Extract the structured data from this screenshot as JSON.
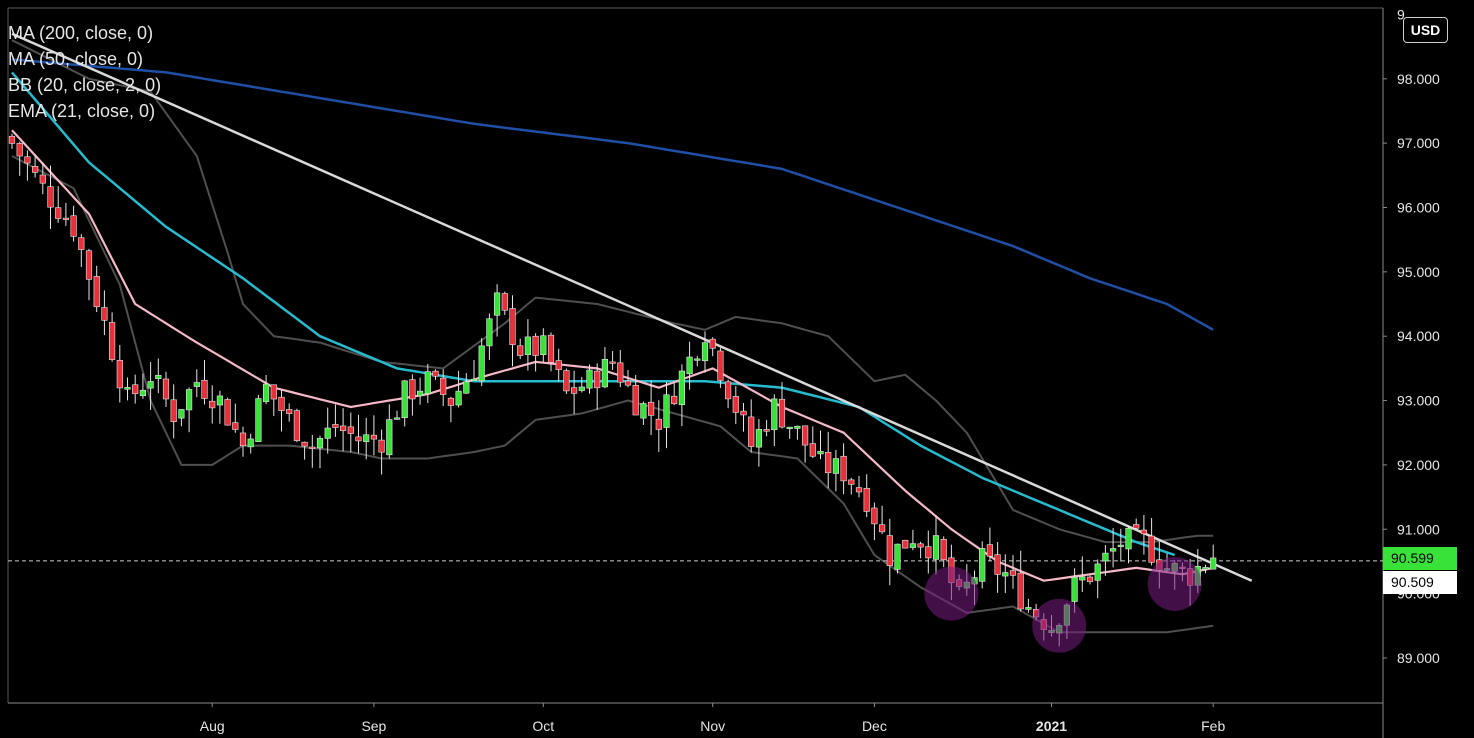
{
  "chart_data": {
    "type": "candlestick",
    "currency_button": "USD",
    "indicators": [
      {
        "label": "MA (200, close, 0)",
        "color": "#1f4fa6"
      },
      {
        "label": "MA (50, close, 0)",
        "color": "#26bcd0"
      },
      {
        "label": "BB (20, close, 2, 0)",
        "color": "#555555"
      },
      {
        "label": "EMA (21, close, 0)",
        "color": "#f5b8c6"
      }
    ],
    "y_ticks": [
      "98.000",
      "97.000",
      "96.000",
      "95.000",
      "94.000",
      "93.000",
      "92.000",
      "91.000",
      "90.000",
      "89.000"
    ],
    "y_top_clipped": "9",
    "ylim": [
      88.3,
      99.1
    ],
    "x_ticks": [
      {
        "label": "Aug",
        "bar": 26
      },
      {
        "label": "Sep",
        "bar": 47
      },
      {
        "label": "Oct",
        "bar": 69
      },
      {
        "label": "Nov",
        "bar": 91
      },
      {
        "label": "Dec",
        "bar": 112
      },
      {
        "label": "2021",
        "bar": 135,
        "bold": true
      },
      {
        "label": "Feb",
        "bar": 156
      }
    ],
    "bar_count": 161,
    "last_price": "90.599",
    "reference_price": "90.509",
    "last_price_value": 90.599,
    "reference_price_value": 90.509,
    "bull_color": "#39e239",
    "bear_color": "#e8303a",
    "trendline": {
      "from": {
        "bar": 0,
        "price": 98.7
      },
      "to": {
        "bar": 161,
        "price": 90.2
      },
      "color": "#d9d9d9"
    },
    "highlight_circles": [
      {
        "bar": 122,
        "price": 90.0
      },
      {
        "bar": 136,
        "price": 89.5
      },
      {
        "bar": 151,
        "price": 90.15
      }
    ],
    "close_anchors": [
      [
        0,
        97.0
      ],
      [
        4,
        96.3
      ],
      [
        8,
        95.7
      ],
      [
        12,
        94.2
      ],
      [
        15,
        93.0
      ],
      [
        18,
        93.4
      ],
      [
        21,
        92.8
      ],
      [
        24,
        93.3
      ],
      [
        27,
        93.0
      ],
      [
        30,
        92.3
      ],
      [
        33,
        93.2
      ],
      [
        36,
        92.7
      ],
      [
        39,
        92.3
      ],
      [
        42,
        92.6
      ],
      [
        45,
        92.4
      ],
      [
        48,
        92.4
      ],
      [
        51,
        93.1
      ],
      [
        54,
        93.3
      ],
      [
        57,
        93.0
      ],
      [
        60,
        93.5
      ],
      [
        63,
        94.5
      ],
      [
        66,
        93.8
      ],
      [
        69,
        93.8
      ],
      [
        72,
        93.1
      ],
      [
        75,
        93.3
      ],
      [
        78,
        93.6
      ],
      [
        81,
        93.0
      ],
      [
        84,
        92.7
      ],
      [
        87,
        93.4
      ],
      [
        90,
        94.1
      ],
      [
        93,
        93.2
      ],
      [
        96,
        92.3
      ],
      [
        99,
        92.9
      ],
      [
        102,
        92.5
      ],
      [
        105,
        92.0
      ],
      [
        108,
        91.9
      ],
      [
        111,
        91.5
      ],
      [
        114,
        90.6
      ],
      [
        117,
        90.9
      ],
      [
        120,
        90.7
      ],
      [
        123,
        89.9
      ],
      [
        126,
        90.5
      ],
      [
        129,
        90.3
      ],
      [
        132,
        89.8
      ],
      [
        135,
        89.5
      ],
      [
        138,
        90.1
      ],
      [
        141,
        90.4
      ],
      [
        144,
        90.8
      ],
      [
        147,
        90.8
      ],
      [
        150,
        90.4
      ],
      [
        153,
        90.3
      ],
      [
        156,
        90.6
      ]
    ],
    "ma200_anchors": [
      [
        0,
        98.3
      ],
      [
        20,
        98.1
      ],
      [
        40,
        97.7
      ],
      [
        60,
        97.3
      ],
      [
        80,
        97.0
      ],
      [
        100,
        96.6
      ],
      [
        120,
        95.8
      ],
      [
        130,
        95.4
      ],
      [
        140,
        94.9
      ],
      [
        150,
        94.5
      ],
      [
        156,
        94.1
      ]
    ],
    "ma50_anchors": [
      [
        0,
        98.1
      ],
      [
        10,
        96.7
      ],
      [
        20,
        95.7
      ],
      [
        30,
        94.9
      ],
      [
        40,
        94.0
      ],
      [
        50,
        93.5
      ],
      [
        60,
        93.3
      ],
      [
        70,
        93.3
      ],
      [
        80,
        93.3
      ],
      [
        90,
        93.3
      ],
      [
        100,
        93.2
      ],
      [
        110,
        92.9
      ],
      [
        118,
        92.3
      ],
      [
        126,
        91.8
      ],
      [
        136,
        91.3
      ],
      [
        146,
        90.8
      ],
      [
        151,
        90.6
      ]
    ],
    "ema21_anchors": [
      [
        0,
        97.2
      ],
      [
        10,
        95.9
      ],
      [
        16,
        94.5
      ],
      [
        24,
        93.9
      ],
      [
        34,
        93.2
      ],
      [
        44,
        92.9
      ],
      [
        54,
        93.1
      ],
      [
        62,
        93.4
      ],
      [
        68,
        93.6
      ],
      [
        76,
        93.5
      ],
      [
        84,
        93.2
      ],
      [
        91,
        93.5
      ],
      [
        100,
        92.9
      ],
      [
        108,
        92.5
      ],
      [
        116,
        91.6
      ],
      [
        122,
        91.0
      ],
      [
        128,
        90.5
      ],
      [
        134,
        90.2
      ],
      [
        140,
        90.3
      ],
      [
        146,
        90.4
      ],
      [
        152,
        90.3
      ],
      [
        156,
        90.4
      ]
    ],
    "bb_upper_anchors": [
      [
        0,
        98.6
      ],
      [
        10,
        98.0
      ],
      [
        18,
        97.8
      ],
      [
        24,
        96.8
      ],
      [
        28,
        95.3
      ],
      [
        30,
        94.5
      ],
      [
        34,
        94.0
      ],
      [
        40,
        93.9
      ],
      [
        48,
        93.6
      ],
      [
        56,
        93.5
      ],
      [
        64,
        94.2
      ],
      [
        68,
        94.6
      ],
      [
        76,
        94.5
      ],
      [
        86,
        94.2
      ],
      [
        90,
        94.1
      ],
      [
        94,
        94.3
      ],
      [
        100,
        94.2
      ],
      [
        106,
        94.0
      ],
      [
        112,
        93.3
      ],
      [
        116,
        93.4
      ],
      [
        120,
        93.0
      ],
      [
        124,
        92.5
      ],
      [
        130,
        91.3
      ],
      [
        136,
        91.0
      ],
      [
        142,
        90.8
      ],
      [
        148,
        90.8
      ],
      [
        154,
        90.9
      ],
      [
        156,
        90.9
      ]
    ],
    "bb_lower_anchors": [
      [
        0,
        96.8
      ],
      [
        8,
        96.3
      ],
      [
        14,
        94.8
      ],
      [
        18,
        93.0
      ],
      [
        22,
        92.0
      ],
      [
        26,
        92.0
      ],
      [
        30,
        92.3
      ],
      [
        36,
        92.3
      ],
      [
        44,
        92.2
      ],
      [
        48,
        92.1
      ],
      [
        54,
        92.1
      ],
      [
        60,
        92.2
      ],
      [
        64,
        92.3
      ],
      [
        68,
        92.7
      ],
      [
        74,
        92.8
      ],
      [
        80,
        93.0
      ],
      [
        86,
        92.8
      ],
      [
        92,
        92.6
      ],
      [
        96,
        92.2
      ],
      [
        102,
        92.1
      ],
      [
        108,
        91.4
      ],
      [
        112,
        90.6
      ],
      [
        118,
        90.1
      ],
      [
        124,
        89.7
      ],
      [
        130,
        89.8
      ],
      [
        136,
        89.4
      ],
      [
        142,
        89.4
      ],
      [
        150,
        89.4
      ],
      [
        156,
        89.5
      ]
    ]
  }
}
